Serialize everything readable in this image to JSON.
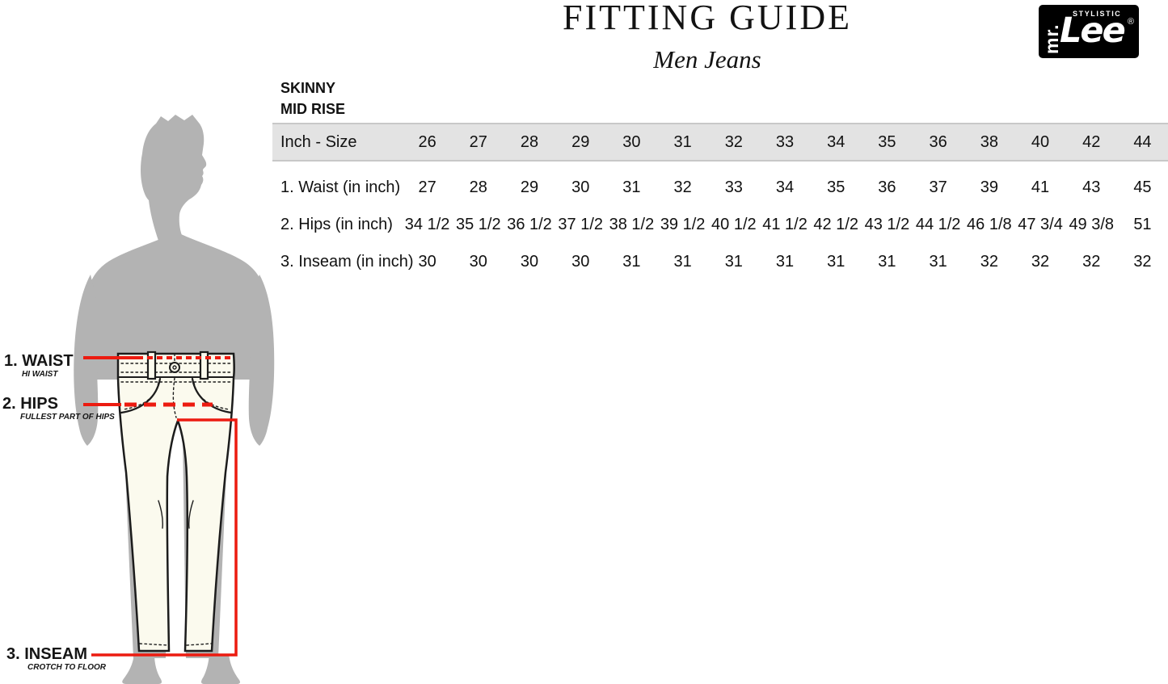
{
  "header": {
    "title": "FITTING GUIDE",
    "subtitle": "Men Jeans"
  },
  "logo": {
    "vertical_text": "mr.",
    "main_text": "Lee",
    "tagline": "STYLISTIC",
    "registered_mark": "®",
    "background": "#000000",
    "foreground": "#ffffff"
  },
  "fit_style": {
    "line1": "SKINNY",
    "line2": "MID RISE"
  },
  "size_table": {
    "header_label": "Inch - Size",
    "sizes": [
      "26",
      "27",
      "28",
      "29",
      "30",
      "31",
      "32",
      "33",
      "34",
      "35",
      "36",
      "38",
      "40",
      "42",
      "44"
    ],
    "rows": [
      {
        "label": "1. Waist (in inch)",
        "values": [
          "27",
          "28",
          "29",
          "30",
          "31",
          "32",
          "33",
          "34",
          "35",
          "36",
          "37",
          "39",
          "41",
          "43",
          "45"
        ]
      },
      {
        "label": "2. Hips (in inch)",
        "values": [
          "34 1/2",
          "35 1/2",
          "36 1/2",
          "37 1/2",
          "38 1/2",
          "39 1/2",
          "40 1/2",
          "41 1/2",
          "42 1/2",
          "43 1/2",
          "44 1/2",
          "46 1/8",
          "47 3/4",
          "49 3/8",
          "51"
        ]
      },
      {
        "label": "3. Inseam (in inch)",
        "values": [
          "30",
          "30",
          "30",
          "30",
          "31",
          "31",
          "31",
          "31",
          "31",
          "31",
          "31",
          "32",
          "32",
          "32",
          "32"
        ]
      }
    ],
    "header_background": "#e3e3e3",
    "header_border": "#c8c8c8"
  },
  "measurement_guide": {
    "annotations": [
      {
        "label": "1. WAIST",
        "sublabel": "HI WAIST"
      },
      {
        "label": "2. HIPS",
        "sublabel": "FULLEST PART OF HIPS"
      },
      {
        "label": "3. INSEAM",
        "sublabel": "CROTCH TO FLOOR"
      }
    ],
    "colors": {
      "measure_line": "#ec1b10",
      "silhouette": "#b3b3b3",
      "jeans_fill": "#fbfaee",
      "jeans_outline": "#1c1c1c"
    }
  }
}
